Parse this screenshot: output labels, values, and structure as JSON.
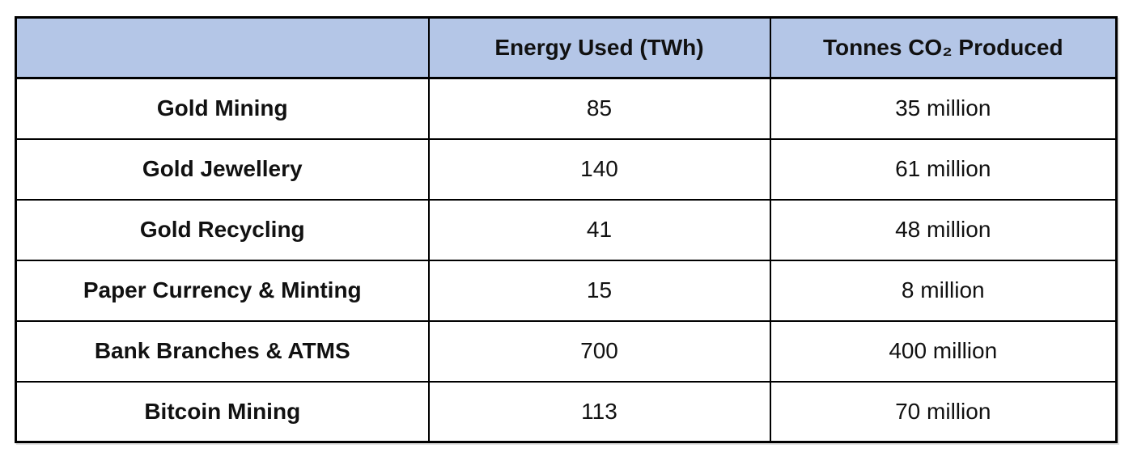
{
  "styles": {
    "header_bg": "#b4c6e7",
    "border_color": "#000000",
    "text_color": "#111111"
  },
  "chart_data": {
    "type": "table",
    "columns": [
      "",
      "Energy Used (TWh)",
      "Tonnes CO₂ Produced"
    ],
    "rows": [
      {
        "label": "Gold Mining",
        "energy": "85",
        "co2": "35 million"
      },
      {
        "label": "Gold Jewellery",
        "energy": "140",
        "co2": "61 million"
      },
      {
        "label": "Gold Recycling",
        "energy": "41",
        "co2": "48 million"
      },
      {
        "label": "Paper Currency & Minting",
        "energy": "15",
        "co2": "8 million"
      },
      {
        "label": "Bank Branches & ATMS",
        "energy": "700",
        "co2": "400 million"
      },
      {
        "label": "Bitcoin Mining",
        "energy": "113",
        "co2": "70 million"
      }
    ],
    "layout_hints": {
      "header_background": "#b4c6e7",
      "grid": true,
      "first_column_header_blank": true
    }
  }
}
